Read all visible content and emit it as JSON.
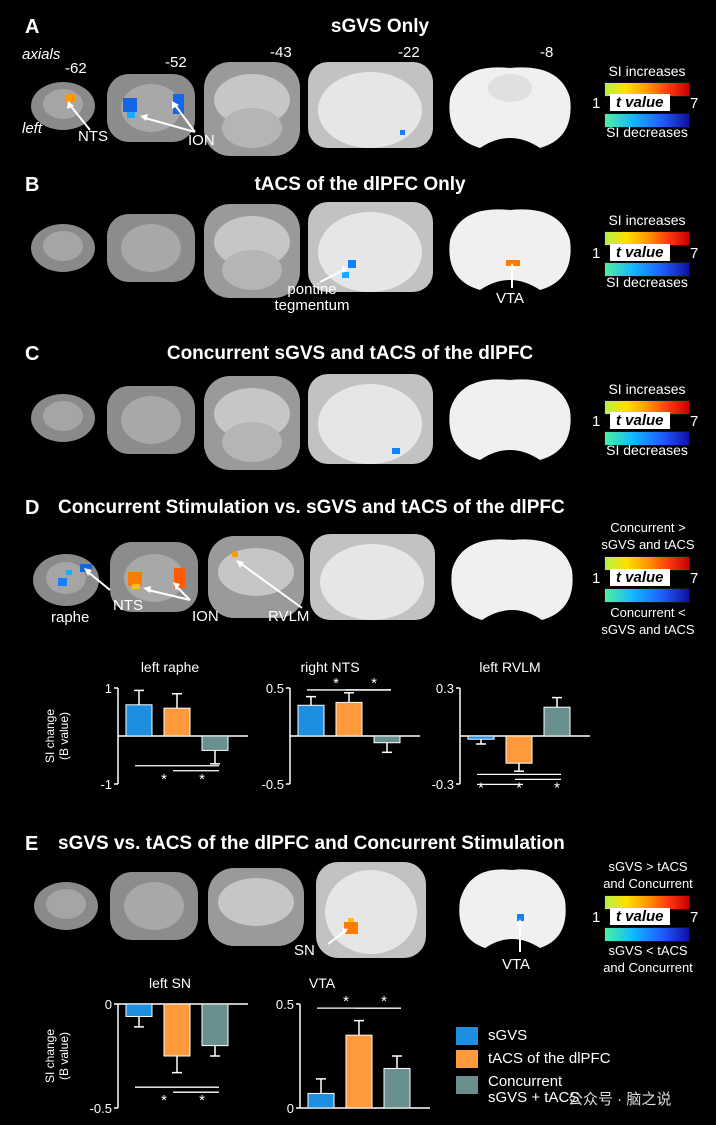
{
  "panels": {
    "A": {
      "letter": "A",
      "title": "sGVS Only"
    },
    "B": {
      "letter": "B",
      "title": "tACS of the dlPFC Only"
    },
    "C": {
      "letter": "C",
      "title": "Concurrent sGVS and tACS of the dlPFC"
    },
    "D": {
      "letter": "D",
      "title": "Concurrent Stimulation vs. sGVS and tACS of the dlPFC"
    },
    "E": {
      "letter": "E",
      "title": "sGVS vs. tACS of the dlPFC and Concurrent Stimulation"
    }
  },
  "axials_label": "axials",
  "left_label": "left",
  "slice_levels": [
    "-62",
    "-52",
    "-43",
    "-22",
    "-8"
  ],
  "annotations": {
    "nts_a": "NTS",
    "ion_a": "ION",
    "pontine": "pontine\ntegmentum",
    "vta_b": "VTA",
    "raphe": "raphe",
    "nts_d": "NTS",
    "ion_d": "ION",
    "rvlm": "RVLM",
    "sn": "SN",
    "vta_e": "VTA"
  },
  "legends": {
    "abc": {
      "top": "SI increases",
      "bottom": "SI decreases",
      "min": "1",
      "max": "7",
      "tval": "t value"
    },
    "d": {
      "top": "Concurrent >\nsGVS and tACS",
      "bottom": "Concurrent <\nsGVS and tACS",
      "min": "1",
      "max": "7",
      "tval": "t value"
    },
    "e": {
      "top": "sGVS > tACS\nand Concurrent",
      "bottom": "sGVS < tACS\nand Concurrent",
      "min": "1",
      "max": "7",
      "tval": "t value"
    }
  },
  "bar_legend": [
    {
      "label": "sGVS",
      "color": "#1e8ee0"
    },
    {
      "label": "tACS of the dlPFC",
      "color": "#ff9a3c"
    },
    {
      "label": "Concurrent\nsGVS + tACS",
      "color": "#6a8f8f"
    }
  ],
  "colors": {
    "sgvs": "#1e8ee0",
    "tacs": "#ff9a3c",
    "concurrent": "#6a8f8f"
  },
  "watermark": "公众号 · 脑之说",
  "chart_data": [
    {
      "type": "bar",
      "title": "left raphe",
      "ylabel": "SI change\n(B value)",
      "ylim": [
        -1,
        1
      ],
      "yticks": [
        "1",
        "",
        "-1"
      ],
      "categories": [
        "sGVS",
        "tACS of the dlPFC",
        "Concurrent"
      ],
      "values": [
        0.65,
        0.58,
        -0.3
      ],
      "errors": [
        0.3,
        0.3,
        0.28
      ],
      "sig": [
        "*",
        "*"
      ]
    },
    {
      "type": "bar",
      "title": "right NTS",
      "ylim": [
        -0.5,
        0.5
      ],
      "yticks": [
        "0.5",
        "",
        "-0.5"
      ],
      "categories": [
        "sGVS",
        "tACS of the dlPFC",
        "Concurrent"
      ],
      "values": [
        0.32,
        0.35,
        -0.07
      ],
      "errors": [
        0.09,
        0.1,
        0.1
      ],
      "sig": [
        "*",
        "*"
      ]
    },
    {
      "type": "bar",
      "title": "left RVLM",
      "ylim": [
        -0.3,
        0.3
      ],
      "yticks": [
        "0.3",
        "",
        "-0.3"
      ],
      "categories": [
        "sGVS",
        "tACS of the dlPFC",
        "Concurrent"
      ],
      "values": [
        -0.02,
        -0.17,
        0.18
      ],
      "errors": [
        0.03,
        0.05,
        0.06
      ],
      "sig": [
        "*",
        "*",
        "*"
      ]
    },
    {
      "type": "bar",
      "title": "left SN",
      "ylabel": "SI change\n(B value)",
      "ylim": [
        -0.5,
        0
      ],
      "yticks": [
        "0",
        "-0.5"
      ],
      "categories": [
        "sGVS",
        "tACS of the dlPFC",
        "Concurrent"
      ],
      "values": [
        -0.06,
        -0.25,
        -0.2
      ],
      "errors": [
        0.05,
        0.08,
        0.05
      ],
      "sig": [
        "*",
        "*"
      ]
    },
    {
      "type": "bar",
      "title": "VTA",
      "ylim": [
        0,
        0.5
      ],
      "yticks": [
        "0.5",
        "0"
      ],
      "categories": [
        "sGVS",
        "tACS of the dlPFC",
        "Concurrent"
      ],
      "values": [
        0.07,
        0.35,
        0.19
      ],
      "errors": [
        0.07,
        0.07,
        0.06
      ],
      "sig": [
        "*",
        "*"
      ]
    }
  ]
}
